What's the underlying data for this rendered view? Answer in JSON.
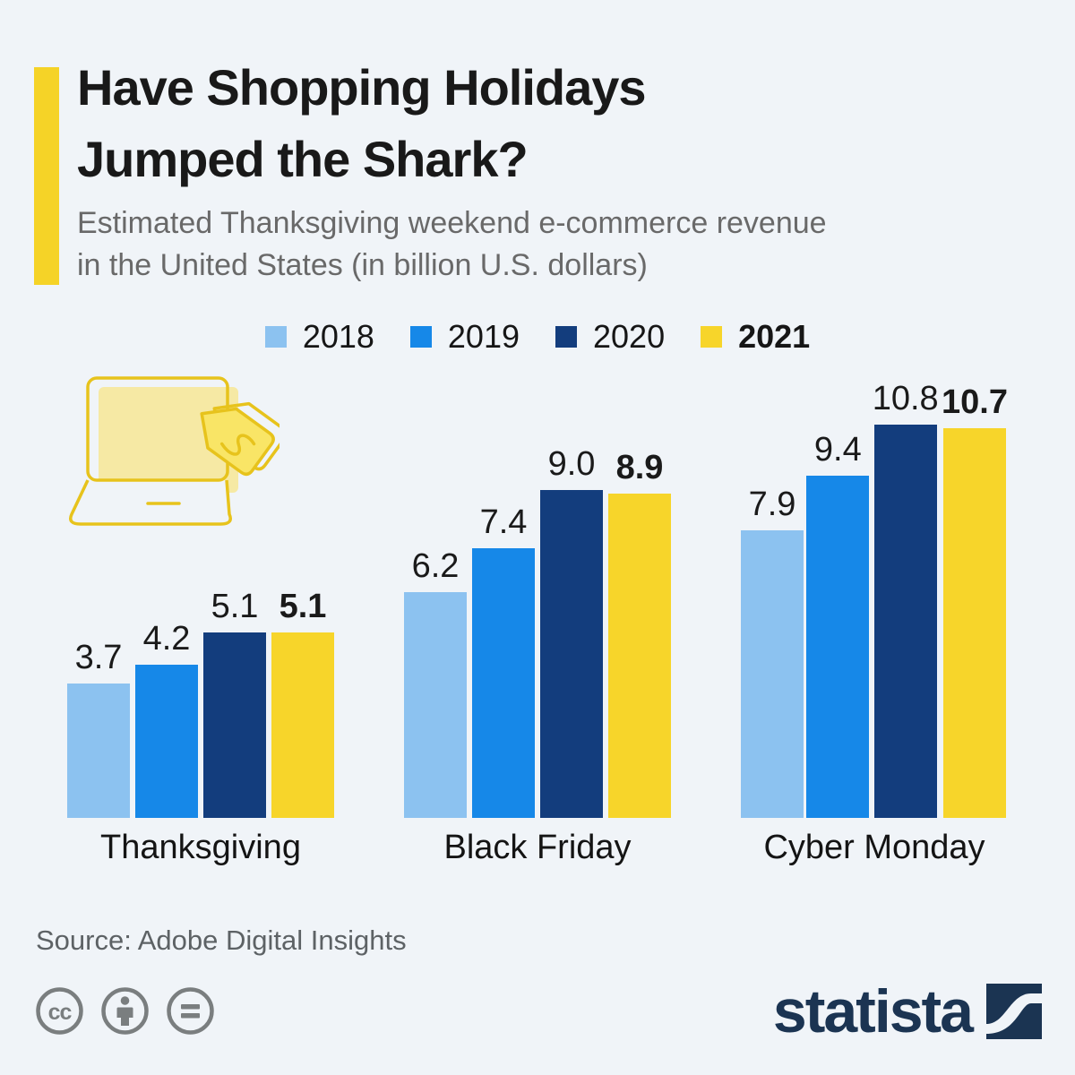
{
  "header": {
    "title_lines": [
      "Have Shopping Holidays",
      "Jumped the Shark?"
    ],
    "subtitle_lines": [
      "Estimated Thanksgiving weekend e-commerce revenue",
      "in the United States (in billion U.S. dollars)"
    ],
    "accent_color": "#f5d327"
  },
  "chart_data": {
    "type": "bar",
    "title": "Estimated Thanksgiving weekend e-commerce revenue in the United States (in billion U.S. dollars)",
    "categories": [
      "Thanksgiving",
      "Black Friday",
      "Cyber Monday"
    ],
    "series": [
      {
        "name": "2018",
        "color": "#8cc2f0",
        "values": [
          3.7,
          6.2,
          7.9
        ],
        "bold": false
      },
      {
        "name": "2019",
        "color": "#1688e8",
        "values": [
          4.2,
          7.4,
          9.4
        ],
        "bold": false
      },
      {
        "name": "2020",
        "color": "#133d7d",
        "values": [
          5.1,
          9.0,
          10.8
        ],
        "bold": false
      },
      {
        "name": "2021",
        "color": "#f7d52a",
        "values": [
          5.1,
          8.9,
          10.7
        ],
        "bold": true
      }
    ],
    "value_labels": true,
    "ylim": [
      0,
      10.8
    ],
    "grid": false,
    "legend_position": "top"
  },
  "icons": {
    "hero": "laptop-shopping-tag-icon",
    "license": [
      "cc-icon",
      "attribution-person-icon",
      "no-derivatives-equals-icon"
    ]
  },
  "footer": {
    "source": "Source: Adobe Digital Insights",
    "brand": "statista",
    "brand_color": "#1b3452"
  }
}
